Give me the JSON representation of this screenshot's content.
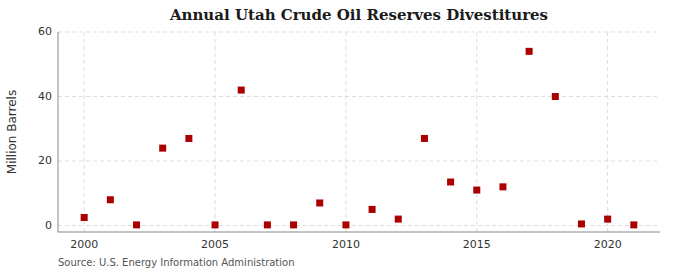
{
  "chart_data": {
    "type": "scatter",
    "title": "Annual Utah Crude Oil Reserves Divestitures",
    "y_label": "Million Barrels",
    "annotations": [
      "Source: U.S. Energy Information Administration"
    ],
    "x": [
      2000,
      2001,
      2002,
      2003,
      2004,
      2005,
      2006,
      2007,
      2008,
      2009,
      2010,
      2011,
      2012,
      2013,
      2014,
      2015,
      2016,
      2017,
      2018,
      2019,
      2020,
      2021
    ],
    "values": [
      2.5,
      8.0,
      0.2,
      24.0,
      27.0,
      0.2,
      42.0,
      0.2,
      0.2,
      7.0,
      0.2,
      5.0,
      2.0,
      27.0,
      13.5,
      11.0,
      12.0,
      54.0,
      40.0,
      0.5,
      2.0,
      0.2
    ],
    "color": "#aa0000",
    "marker": "square",
    "xlim": [
      1999,
      2022
    ],
    "xticks": [
      2000,
      2005,
      2010,
      2015,
      2020
    ],
    "ylim": [
      -2,
      60
    ],
    "yticks": [
      0,
      20,
      40,
      60
    ],
    "grid": true
  }
}
